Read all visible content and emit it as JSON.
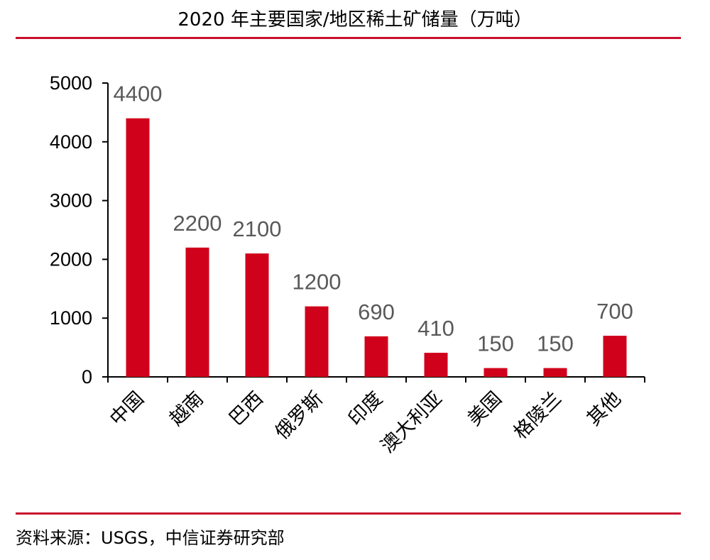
{
  "header": {
    "title": "2020 年主要国家/地区稀土矿储量（万吨）"
  },
  "footer": {
    "source": "资料来源：USGS，中信证券研究部"
  },
  "colors": {
    "bar": "#d0021b",
    "rule": "#c8102e",
    "data_label": "#595959"
  },
  "chart_data": {
    "type": "bar",
    "title": "2020 年主要国家/地区稀土矿储量（万吨）",
    "xlabel": "",
    "ylabel": "",
    "categories": [
      "中国",
      "越南",
      "巴西",
      "俄罗斯",
      "印度",
      "澳大利亚",
      "美国",
      "格陵兰",
      "其他"
    ],
    "values": [
      4400,
      2200,
      2100,
      1200,
      690,
      410,
      150,
      150,
      700
    ],
    "data_labels": [
      "4400",
      "2200",
      "2100",
      "1200",
      "690",
      "410",
      "150",
      "150",
      "700"
    ],
    "ylim": [
      0,
      5000
    ],
    "yticks": [
      "0",
      "1000",
      "2000",
      "3000",
      "4000",
      "5000"
    ],
    "grid": false,
    "legend": "none"
  }
}
